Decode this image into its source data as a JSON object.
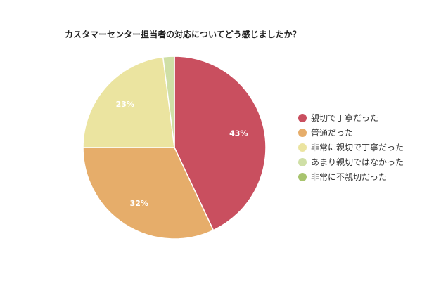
{
  "chart_data": {
    "type": "pie",
    "title": "カスタマーセンター担当者の対応についてどう感じましたか？",
    "slices": [
      {
        "label": "親切で丁寧だった",
        "value": 43,
        "display": "43%",
        "color": "#c94f5f"
      },
      {
        "label": "普通だった",
        "value": 32,
        "display": "32%",
        "color": "#e6ad6a"
      },
      {
        "label": "非常に親切で丁寧だった",
        "value": 23,
        "display": "23%",
        "color": "#ebe4a0"
      },
      {
        "label": "あまり親切ではなかった",
        "value": 2,
        "display": "",
        "color": "#cfdfa6"
      },
      {
        "label": "非常に不親切だった",
        "value": 0,
        "display": "",
        "color": "#a8c46e"
      }
    ],
    "legend_position": "right"
  }
}
